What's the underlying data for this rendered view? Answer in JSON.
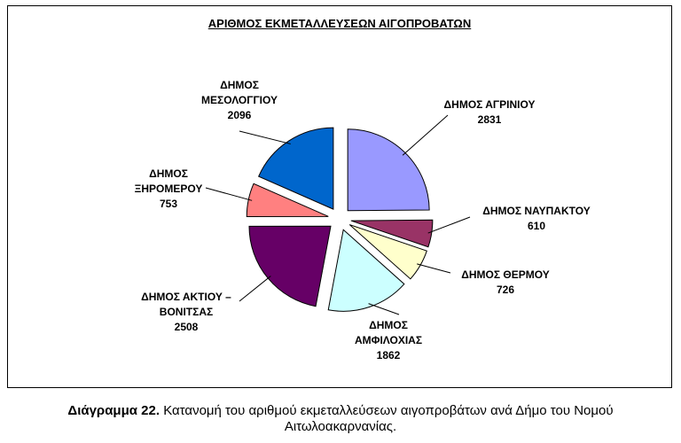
{
  "chart_data": {
    "type": "pie",
    "title": "ΑΡΙΘΜΟΣ ΕΚΜΕΤΑΛΛΕΥΣΕΩΝ ΑΙΓΟΠΡΟΒΑΤΩΝ",
    "categories": [
      "ΔΗΜΟΣ ΑΓΡΙΝΙΟΥ",
      "ΔΗΜΟΣ ΝΑΥΠΑΚΤΟΥ",
      "ΔΗΜΟΣ ΘΕΡΜΟΥ",
      "ΔΗΜΟΣ ΑΜΦΙΛΟΧΙΑΣ",
      "ΔΗΜΟΣ ΑΚΤΙΟΥ – ΒΟΝΙΤΣΑΣ",
      "ΔΗΜΟΣ ΞΗΡΟΜΕΡΟΥ",
      "ΔΗΜΟΣ ΜΕΣΟΛΟΓΓΙΟΥ"
    ],
    "values": [
      2831,
      610,
      726,
      1862,
      2508,
      753,
      2096
    ],
    "colors": [
      "#9999ff",
      "#993366",
      "#ffffcc",
      "#ccffff",
      "#660066",
      "#ff8080",
      "#0066cc"
    ]
  },
  "caption": {
    "label": "Διάγραμμα 22.",
    "text": "Κατανομή του αριθμού εκμεταλλεύσεων αιγοπροβάτων ανά Δήμο του Νομού Αιτωλοακαρνανίας."
  }
}
